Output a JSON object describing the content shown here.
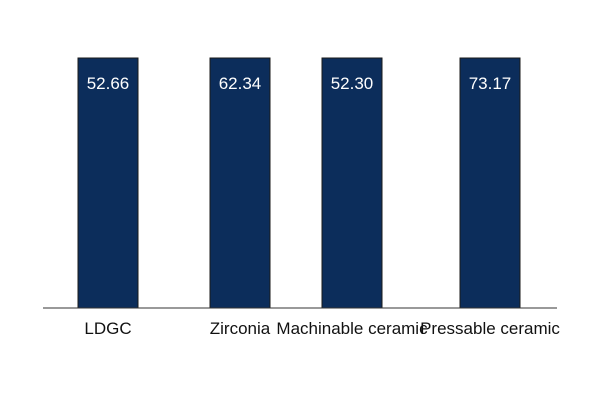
{
  "chart_data": {
    "type": "bar",
    "title": "",
    "xlabel": "",
    "ylabel": "",
    "categories": [
      "LDGC",
      "Zirconia",
      "Machinable ceramic",
      "Pressable ceramic"
    ],
    "values": [
      52.66,
      62.34,
      52.3,
      73.17
    ],
    "value_labels": [
      "52.66",
      "62.34",
      "52.30",
      "73.17"
    ],
    "bar_height_scale": "equal_full_height",
    "grid": false,
    "legend": "none",
    "colors": {
      "bar": "#0c2d5b",
      "bar_stroke": "#1a1a1a",
      "axis": "#333333",
      "value_text": "#ffffff"
    }
  }
}
